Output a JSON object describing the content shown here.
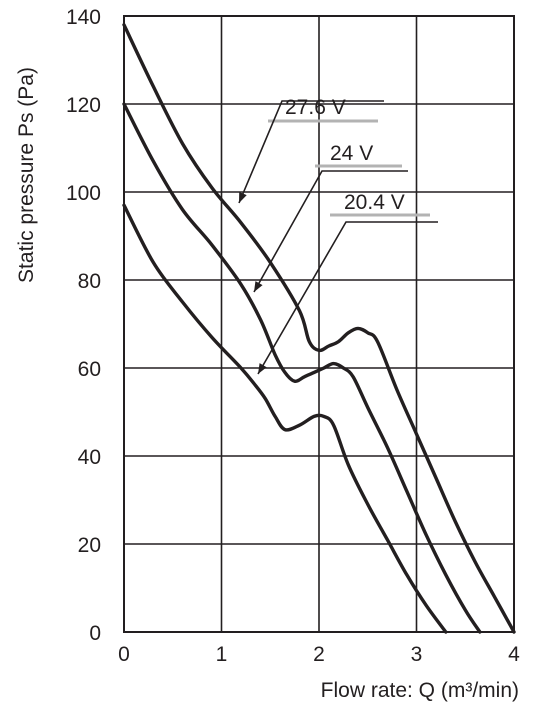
{
  "chart_data": {
    "type": "line",
    "xlabel": "Flow rate: Q (m³/min)",
    "ylabel": "Static pressure Ps (Pa)",
    "xlim": [
      0,
      4
    ],
    "ylim": [
      0,
      140
    ],
    "x_ticks": [
      "0",
      "1",
      "2",
      "3",
      "4"
    ],
    "y_ticks": [
      "0",
      "20",
      "40",
      "60",
      "80",
      "100",
      "120",
      "140"
    ],
    "grid": true,
    "series": [
      {
        "name": "27.6 V",
        "x": [
          0,
          0.3,
          0.6,
          0.9,
          1.2,
          1.5,
          1.8,
          1.9,
          2.0,
          2.1,
          2.2,
          2.3,
          2.4,
          2.5,
          2.6,
          2.8,
          3.0,
          3.2,
          3.4,
          3.6,
          3.8,
          4.0
        ],
        "y": [
          138,
          124,
          111,
          101,
          93,
          84,
          73,
          66,
          64,
          65,
          66,
          68,
          69,
          68,
          66,
          55,
          45,
          35,
          25,
          16,
          8,
          0
        ]
      },
      {
        "name": "24 V",
        "x": [
          0,
          0.3,
          0.6,
          0.9,
          1.2,
          1.4,
          1.55,
          1.65,
          1.75,
          1.85,
          1.95,
          2.05,
          2.15,
          2.25,
          2.35,
          2.5,
          2.7,
          2.9,
          3.1,
          3.3,
          3.5,
          3.65
        ],
        "y": [
          120,
          107,
          96,
          88,
          79,
          71,
          63,
          59,
          57,
          58,
          59,
          60,
          61,
          60,
          58,
          51,
          42,
          32,
          22,
          13,
          5,
          0
        ]
      },
      {
        "name": "20.4 V",
        "x": [
          0,
          0.3,
          0.6,
          0.9,
          1.2,
          1.35,
          1.45,
          1.55,
          1.65,
          1.8,
          1.95,
          2.05,
          2.15,
          2.3,
          2.5,
          2.7,
          2.9,
          3.1,
          3.3
        ],
        "y": [
          97,
          84,
          75,
          67,
          60,
          56,
          53,
          49,
          46,
          47,
          49,
          49,
          47,
          38,
          29,
          21,
          13,
          6,
          0
        ]
      }
    ],
    "annotations": [
      "27.6 V",
      "24 V",
      "20.4 V"
    ]
  }
}
